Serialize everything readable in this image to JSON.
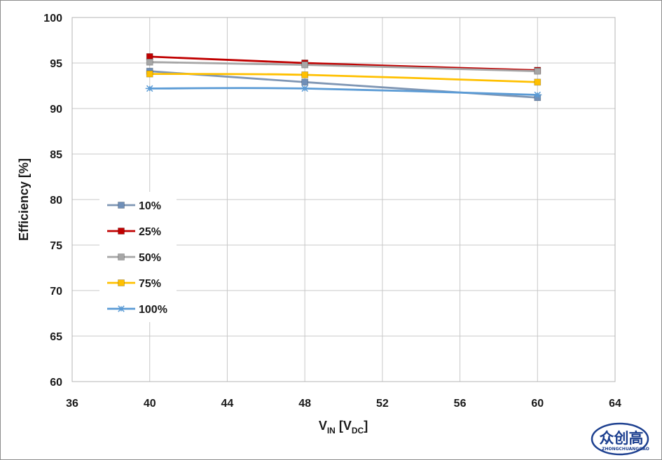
{
  "chart_data": {
    "type": "line",
    "title": "",
    "xlabel": {
      "main": "V",
      "main_sub": "IN",
      "unit_open": " [V",
      "unit_sub": "DC",
      "unit_close": "]"
    },
    "ylabel": "Efficiency [%]",
    "xlim": [
      36,
      64
    ],
    "ylim": [
      60,
      100
    ],
    "xticks": [
      36,
      40,
      44,
      48,
      52,
      56,
      60,
      64
    ],
    "yticks": [
      60,
      65,
      70,
      75,
      80,
      85,
      90,
      95,
      100
    ],
    "grid": true,
    "legend_position": "left-middle",
    "x": [
      40,
      48,
      60
    ],
    "series": [
      {
        "name": "10%",
        "values": [
          94.1,
          92.9,
          91.2
        ],
        "color": "#7f96b4",
        "marker": "square",
        "marker_color": "#6f8fb8"
      },
      {
        "name": "25%",
        "values": [
          95.7,
          95.0,
          94.2
        ],
        "color": "#c00000",
        "marker": "square",
        "marker_color": "#c00000"
      },
      {
        "name": "50%",
        "values": [
          95.1,
          94.8,
          94.1
        ],
        "color": "#a6a6a6",
        "marker": "square",
        "marker_color": "#a6a6a6"
      },
      {
        "name": "75%",
        "values": [
          93.8,
          93.7,
          92.9
        ],
        "color": "#ffc000",
        "marker": "square",
        "marker_color": "#ffc000"
      },
      {
        "name": "100%",
        "values": [
          92.2,
          92.2,
          91.5
        ],
        "color": "#5b9bd5",
        "marker": "asterisk",
        "marker_color": "#5b9bd5"
      }
    ]
  },
  "watermark": {
    "text": "众创高",
    "subtext": "ZHONGCHUANGGAO"
  }
}
